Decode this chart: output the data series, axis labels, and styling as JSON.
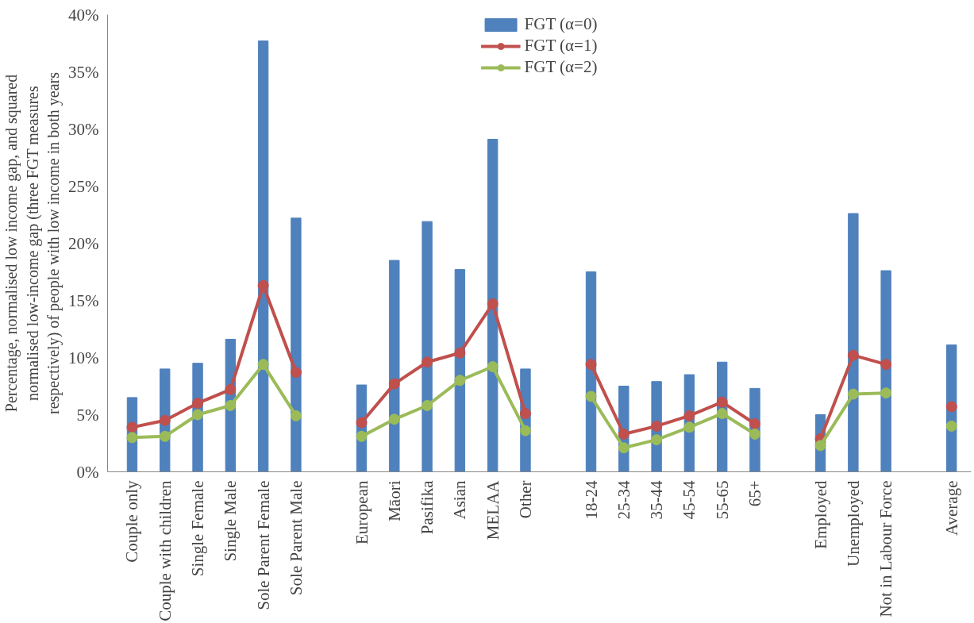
{
  "chart_data": {
    "type": "bar",
    "ylabel": "Percentage, normalised low income gap, and squared normalised low-income gap (three FGT measures respectively) of people with low income in both years",
    "categories": [
      "Couple only",
      "Couple with children",
      "Single Female",
      "Single Male",
      "Sole Parent Female",
      "Sole Parent Male",
      null,
      "European",
      "Māori",
      "Pasifika",
      "Asian",
      "MELAA",
      "Other",
      null,
      "18-24",
      "25-34",
      "35-44",
      "45-54",
      "55-65",
      "65+",
      null,
      "Employed",
      "Unemployed",
      "Not in Labour Force",
      null,
      "Average"
    ],
    "series": [
      {
        "name": "FGT (α=0)",
        "color": "#4f81bd",
        "values": [
          6.5,
          9.0,
          9.5,
          11.6,
          37.7,
          22.2,
          null,
          7.6,
          18.5,
          21.9,
          17.7,
          29.1,
          9.0,
          null,
          17.5,
          7.5,
          7.9,
          8.5,
          9.6,
          7.3,
          null,
          5.0,
          22.6,
          17.6,
          null,
          11.1
        ]
      },
      {
        "name": "FGT (α=1)",
        "type": "line",
        "color": "#c0504d",
        "values": [
          3.9,
          4.5,
          6.0,
          7.2,
          16.3,
          8.7,
          null,
          4.3,
          7.7,
          9.6,
          10.4,
          14.7,
          5.1,
          null,
          9.4,
          3.3,
          4.0,
          4.9,
          6.1,
          4.2,
          null,
          2.9,
          10.2,
          9.4,
          null,
          5.7
        ]
      },
      {
        "name": "FGT (α=2)",
        "type": "line",
        "color": "#9bbb59",
        "values": [
          3.0,
          3.1,
          5.0,
          5.8,
          9.4,
          4.9,
          null,
          3.1,
          4.6,
          5.8,
          8.0,
          9.2,
          3.6,
          null,
          6.6,
          2.1,
          2.8,
          3.9,
          5.1,
          3.3,
          null,
          2.3,
          6.8,
          6.9,
          null,
          4.0
        ]
      }
    ],
    "ylim": [
      0,
      40
    ],
    "yticks": [
      {
        "value": 0,
        "label": "0%"
      },
      {
        "value": 5,
        "label": "5%"
      },
      {
        "value": 10,
        "label": "10%"
      },
      {
        "value": 15,
        "label": "15%"
      },
      {
        "value": 20,
        "label": "20%"
      },
      {
        "value": 25,
        "label": "25%"
      },
      {
        "value": 30,
        "label": "30%"
      },
      {
        "value": 35,
        "label": "35%"
      },
      {
        "value": 40,
        "label": "40%"
      }
    ],
    "grid": false,
    "legend": "top",
    "marker": "circle",
    "line_style": "solid"
  }
}
